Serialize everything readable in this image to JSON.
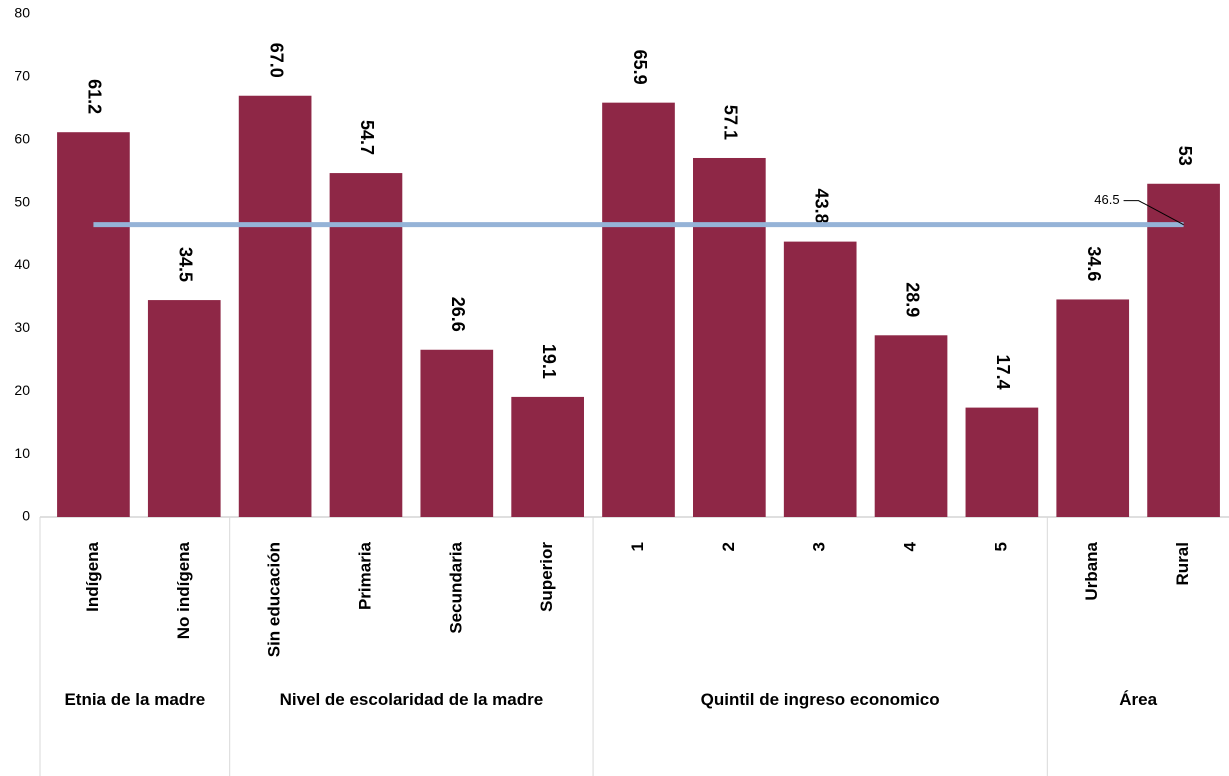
{
  "chart_data": {
    "type": "bar",
    "groups": [
      {
        "name": "Etnia de la madre",
        "categories": [
          "Indígena",
          "No indígena"
        ]
      },
      {
        "name": "Nivel de escolaridad de la madre",
        "categories": [
          "Sin educación",
          "Primaria",
          "Secundaria",
          "Superior"
        ]
      },
      {
        "name": "Quintil de ingreso economico",
        "categories": [
          "1",
          "2",
          "3",
          "4",
          "5"
        ]
      },
      {
        "name": "Área",
        "categories": [
          "Urbana",
          "Rural"
        ]
      }
    ],
    "values": [
      61.2,
      34.5,
      67.0,
      54.7,
      26.6,
      19.1,
      65.9,
      57.1,
      43.8,
      28.9,
      17.4,
      34.6,
      53
    ],
    "value_labels": [
      "61.2",
      "34.5",
      "67.0",
      "54.7",
      "26.6",
      "19.1",
      "65.9",
      "57.1",
      "43.8",
      "28.9",
      "17.4",
      "34.6",
      "53"
    ],
    "color": "#8e2746",
    "reference_line": 46.5,
    "reference_color": "#95b3d7",
    "ylim": [
      0,
      80
    ],
    "yticks": [
      0,
      10,
      20,
      30,
      40,
      50,
      60,
      70,
      80
    ],
    "grid": false
  }
}
